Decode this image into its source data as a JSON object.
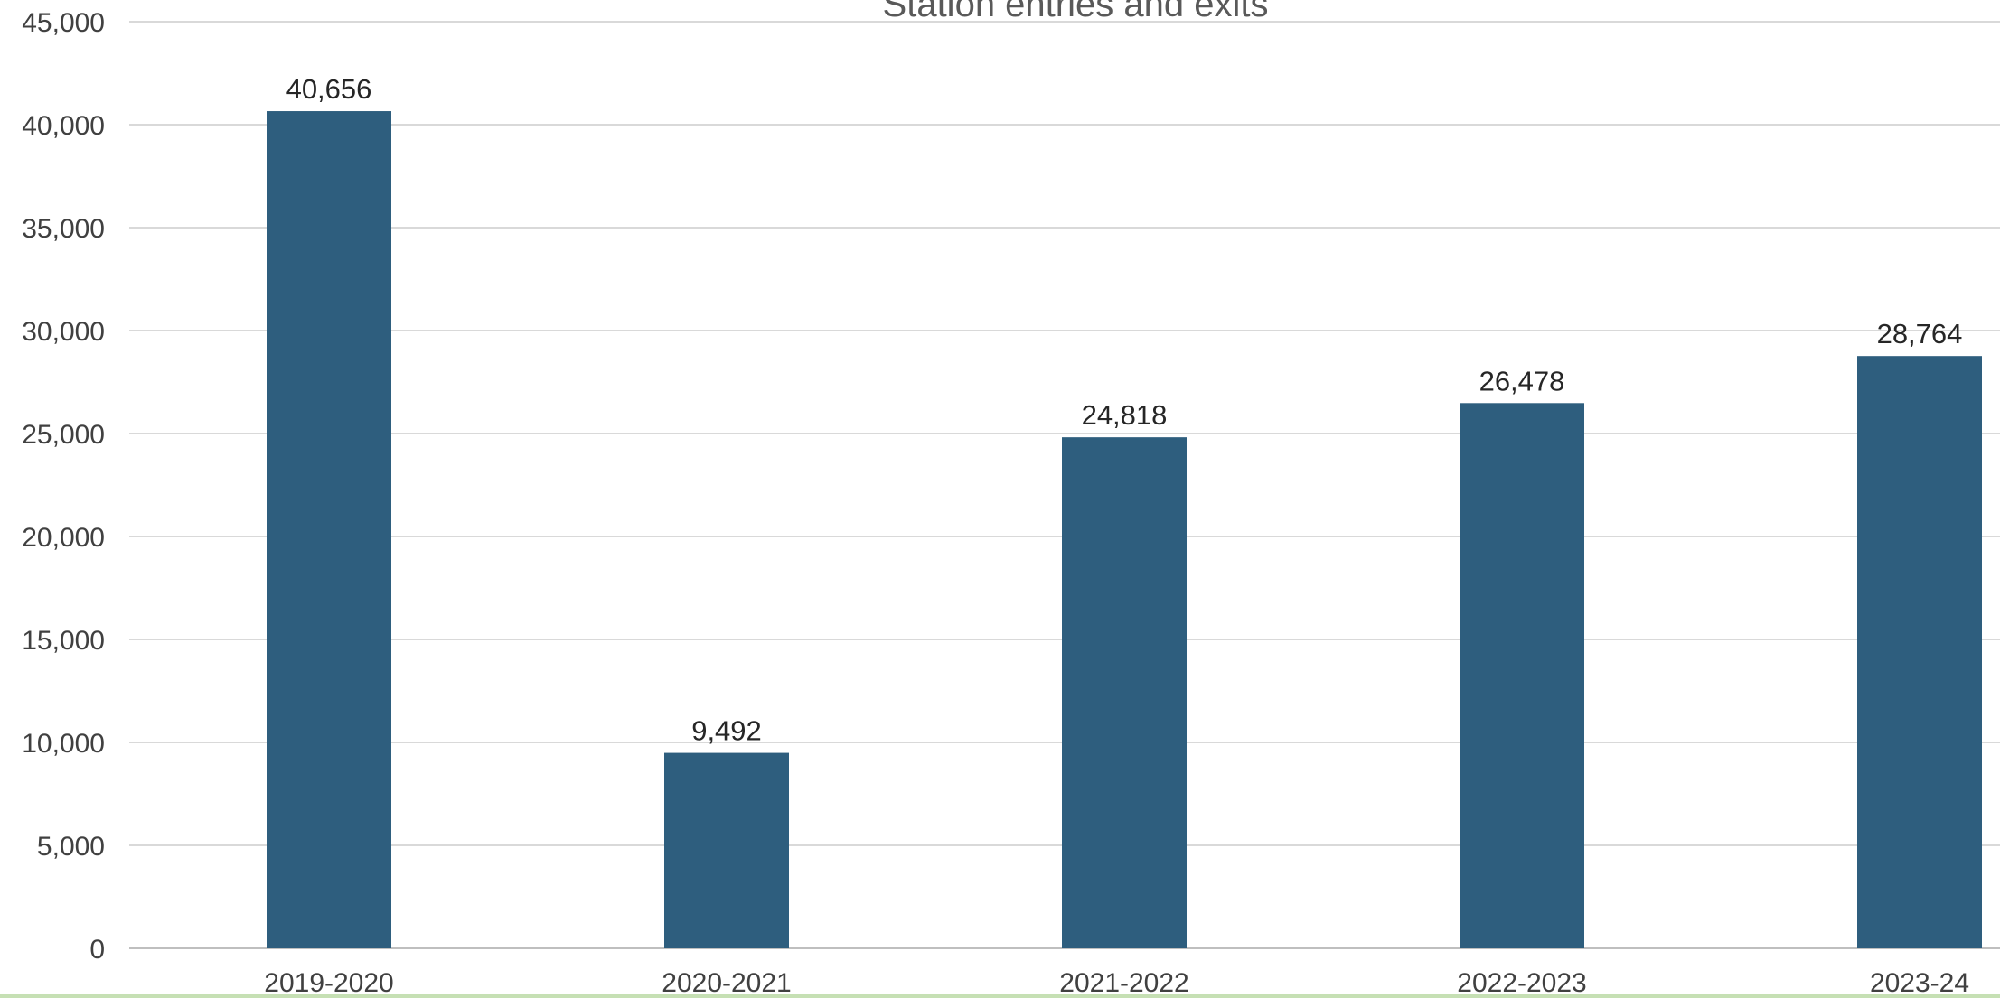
{
  "chart_data": {
    "type": "bar",
    "title": "Station entries and exits",
    "xlabel": "",
    "ylabel": "",
    "categories": [
      "2019-2020",
      "2020-2021",
      "2021-2022",
      "2022-2023",
      "2023-24"
    ],
    "values": [
      40656,
      9492,
      24818,
      26478,
      28764
    ],
    "value_labels": [
      "40,656",
      "9,492",
      "24,818",
      "26,478",
      "28,764"
    ],
    "ylim": [
      0,
      45000
    ],
    "yticks": [
      0,
      5000,
      10000,
      15000,
      20000,
      25000,
      30000,
      35000,
      40000,
      45000
    ],
    "ytick_labels": [
      "0",
      "5,000",
      "10,000",
      "15,000",
      "20,000",
      "25,000",
      "30,000",
      "35,000",
      "40,000",
      "45,000"
    ],
    "grid": true,
    "legend": "none",
    "colors": {
      "bar": "#2e5e7e",
      "grid": "#d9d9d9",
      "bottom_strip": "#c6e0b4"
    }
  }
}
